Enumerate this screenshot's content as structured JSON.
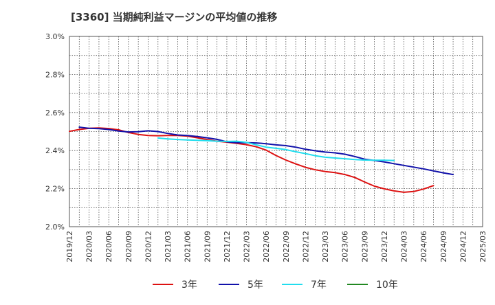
{
  "chart_data": {
    "type": "line",
    "title": "[3360]  当期純利益マージンの平均値の推移",
    "xlabel": "",
    "ylabel": "",
    "x_ticks": [
      "2019/12",
      "2020/03",
      "2020/06",
      "2020/09",
      "2020/12",
      "2021/03",
      "2021/06",
      "2021/09",
      "2021/12",
      "2022/03",
      "2022/06",
      "2022/09",
      "2022/12",
      "2023/03",
      "2023/06",
      "2023/09",
      "2023/12",
      "2024/03",
      "2024/06",
      "2024/09",
      "2024/12",
      "2025/03"
    ],
    "y_ticks": [
      "2.0%",
      "2.2%",
      "2.4%",
      "2.6%",
      "2.8%",
      "3.0%"
    ],
    "ylim": [
      2.0,
      3.0
    ],
    "grid": true,
    "legend_position": "bottom",
    "series": [
      {
        "name": "3年",
        "color": "#dd1111",
        "start_index": 0,
        "values": [
          2.501,
          2.511,
          2.517,
          2.519,
          2.516,
          2.509,
          2.495,
          2.485,
          2.479,
          2.478,
          2.479,
          2.479,
          2.476,
          2.467,
          2.458,
          2.449,
          2.444,
          2.438,
          2.431,
          2.42,
          2.402,
          2.374,
          2.35,
          2.33,
          2.312,
          2.299,
          2.29,
          2.284,
          2.274,
          2.259,
          2.235,
          2.213,
          2.199,
          2.188,
          2.181,
          2.185,
          2.198,
          2.216
        ]
      },
      {
        "name": "5年",
        "color": "#1111aa",
        "start_index": 1,
        "values": [
          2.523,
          2.517,
          2.515,
          2.511,
          2.503,
          2.498,
          2.499,
          2.504,
          2.5,
          2.49,
          2.482,
          2.479,
          2.474,
          2.467,
          2.459,
          2.446,
          2.441,
          2.441,
          2.44,
          2.436,
          2.43,
          2.426,
          2.418,
          2.407,
          2.399,
          2.392,
          2.388,
          2.381,
          2.369,
          2.355,
          2.348,
          2.34,
          2.331,
          2.322,
          2.313,
          2.304,
          2.293,
          2.283,
          2.274
        ]
      },
      {
        "name": "7年",
        "color": "#22ddee",
        "start_index": 9,
        "values": [
          2.466,
          2.461,
          2.458,
          2.456,
          2.454,
          2.452,
          2.449,
          2.448,
          2.449,
          2.443,
          2.43,
          2.418,
          2.412,
          2.405,
          2.394,
          2.384,
          2.373,
          2.365,
          2.361,
          2.357,
          2.353,
          2.35,
          2.349,
          2.349,
          2.348
        ]
      },
      {
        "name": "10年",
        "color": "#228822",
        "start_index": 0,
        "values": []
      }
    ]
  }
}
